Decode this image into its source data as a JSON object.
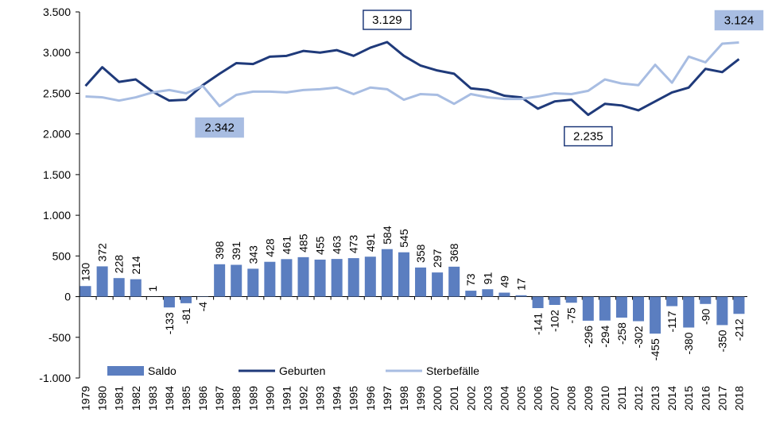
{
  "chart_data": {
    "type": "bar_line",
    "categories": [
      "1979",
      "1980",
      "1981",
      "1982",
      "1983",
      "1984",
      "1985",
      "1986",
      "1987",
      "1988",
      "1989",
      "1990",
      "1991",
      "1992",
      "1993",
      "1994",
      "1995",
      "1996",
      "1997",
      "1998",
      "1999",
      "2000",
      "2001",
      "2002",
      "2003",
      "2004",
      "2005",
      "2006",
      "2007",
      "2008",
      "2009",
      "2010",
      "2011",
      "2012",
      "2013",
      "2014",
      "2015",
      "2016",
      "2017",
      "2018"
    ],
    "series": [
      {
        "name": "Saldo",
        "type": "bar",
        "color": "#5b7ec0",
        "values": [
          130,
          372,
          228,
          214,
          1,
          -133,
          -81,
          -4,
          398,
          391,
          343,
          428,
          461,
          485,
          455,
          463,
          473,
          491,
          584,
          545,
          358,
          297,
          368,
          73,
          91,
          49,
          17,
          -141,
          -102,
          -75,
          -296,
          -294,
          -258,
          -302,
          -455,
          -117,
          -380,
          -90,
          -350,
          -212
        ]
      },
      {
        "name": "Geburten",
        "type": "line",
        "color": "#1f3a7a",
        "values": [
          2590,
          2820,
          2640,
          2670,
          2520,
          2410,
          2420,
          2600,
          2740,
          2870,
          2860,
          2950,
          2960,
          3020,
          3000,
          3030,
          2960,
          3060,
          3129,
          2960,
          2840,
          2780,
          2740,
          2560,
          2540,
          2470,
          2450,
          2310,
          2400,
          2420,
          2235,
          2370,
          2350,
          2290,
          2400,
          2510,
          2570,
          2800,
          2760,
          2920
        ],
        "value_labels": [
          null,
          null,
          null,
          null,
          null,
          null,
          null,
          null,
          null,
          null,
          null,
          null,
          null,
          null,
          null,
          null,
          null,
          null,
          "3.129",
          null,
          null,
          null,
          null,
          null,
          null,
          null,
          null,
          null,
          null,
          null,
          "2.235",
          null,
          null,
          null,
          null,
          null,
          null,
          null,
          null,
          null
        ]
      },
      {
        "name": "Sterbefälle",
        "type": "line",
        "color": "#a8bde2",
        "values": [
          2460,
          2450,
          2410,
          2450,
          2510,
          2540,
          2500,
          2590,
          2342,
          2480,
          2520,
          2520,
          2510,
          2540,
          2550,
          2570,
          2490,
          2570,
          2550,
          2420,
          2490,
          2480,
          2370,
          2490,
          2450,
          2430,
          2430,
          2460,
          2500,
          2490,
          2530,
          2670,
          2620,
          2600,
          2850,
          2630,
          2950,
          2880,
          3110,
          3124
        ],
        "value_labels": [
          null,
          null,
          null,
          null,
          null,
          null,
          null,
          null,
          "2.342",
          null,
          null,
          null,
          null,
          null,
          null,
          null,
          null,
          null,
          null,
          null,
          null,
          null,
          null,
          null,
          null,
          null,
          null,
          null,
          null,
          null,
          null,
          null,
          null,
          null,
          null,
          null,
          null,
          null,
          null,
          "3.124"
        ]
      }
    ],
    "ylim": [
      -1000,
      3500
    ],
    "yticks": [
      {
        "value": -1000,
        "label": "-1.000"
      },
      -500,
      0,
      500,
      {
        "value": 1000,
        "label": "1.000"
      },
      {
        "value": 1500,
        "label": "1.500"
      },
      {
        "value": 2000,
        "label": "2.000"
      },
      {
        "value": 2500,
        "label": "2.500"
      },
      {
        "value": 3000,
        "label": "3.000"
      },
      {
        "value": 3500,
        "label": "3.500"
      }
    ],
    "legend": "bottom",
    "grid": false
  }
}
